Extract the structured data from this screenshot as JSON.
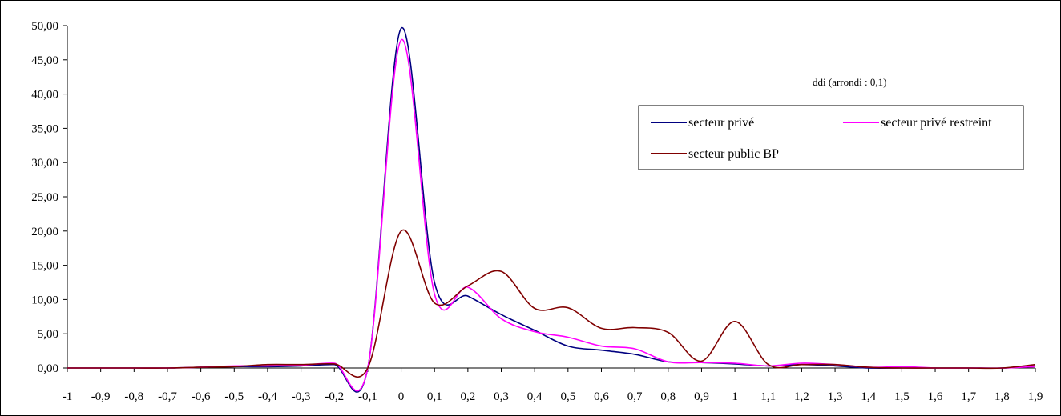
{
  "chart_data": {
    "type": "line",
    "title": "",
    "xlabel": "",
    "ylabel": "",
    "annotation": "ddi  (arrondi : 0,1)",
    "categories": [
      "-1",
      "-0,9",
      "-0,8",
      "-0,7",
      "-0,6",
      "-0,5",
      "-0,4",
      "-0,3",
      "-0,2",
      "-0,1",
      "0",
      "0,1",
      "0,2",
      "0,3",
      "0,4",
      "0,5",
      "0,6",
      "0,7",
      "0,8",
      "0,9",
      "1",
      "1,1",
      "1,2",
      "1,3",
      "1,4",
      "1,5",
      "1,6",
      "1,7",
      "1,8",
      "1,9"
    ],
    "x": [
      -1,
      -0.9,
      -0.8,
      -0.7,
      -0.6,
      -0.5,
      -0.4,
      -0.3,
      -0.2,
      -0.1,
      0,
      0.1,
      0.2,
      0.3,
      0.4,
      0.5,
      0.6,
      0.7,
      0.8,
      0.9,
      1,
      1.1,
      1.2,
      1.3,
      1.4,
      1.5,
      1.6,
      1.7,
      1.8,
      1.9
    ],
    "ylim": [
      0,
      50
    ],
    "yticks": [
      "0,00",
      "5,00",
      "10,00",
      "15,00",
      "20,00",
      "25,00",
      "30,00",
      "35,00",
      "40,00",
      "45,00",
      "50,00"
    ],
    "grid": false,
    "legend_position": "top-right",
    "series": [
      {
        "name": "secteur privé",
        "color": "#000080",
        "values": [
          0,
          0,
          0,
          0,
          0.1,
          0.2,
          0.2,
          0.3,
          0.5,
          0,
          49.6,
          12.5,
          10.5,
          7.8,
          5.5,
          3.2,
          2.6,
          2.0,
          0.9,
          0.8,
          0.6,
          0.3,
          0.5,
          0.3,
          0,
          0,
          0,
          0,
          0,
          0.3
        ]
      },
      {
        "name": "secteur privé restreint",
        "color": "#ff00ff",
        "values": [
          0,
          0,
          0,
          0,
          0.1,
          0.3,
          0.3,
          0.4,
          0.7,
          0,
          47.9,
          10.8,
          11.8,
          7.2,
          5.3,
          4.5,
          3.2,
          2.8,
          0.9,
          0.8,
          0.7,
          0.3,
          0.7,
          0.5,
          0.1,
          0.2,
          0,
          0,
          0,
          0.2
        ]
      },
      {
        "name": "secteur public BP",
        "color": "#800000",
        "values": [
          0,
          0,
          0,
          0,
          0.1,
          0.2,
          0.5,
          0.5,
          0.6,
          0,
          20.0,
          9.5,
          12.0,
          14.1,
          8.7,
          8.8,
          5.8,
          5.9,
          5.2,
          1.0,
          6.8,
          0.5,
          0.5,
          0.5,
          0.1,
          0,
          0,
          0,
          0,
          0.5
        ]
      }
    ]
  }
}
